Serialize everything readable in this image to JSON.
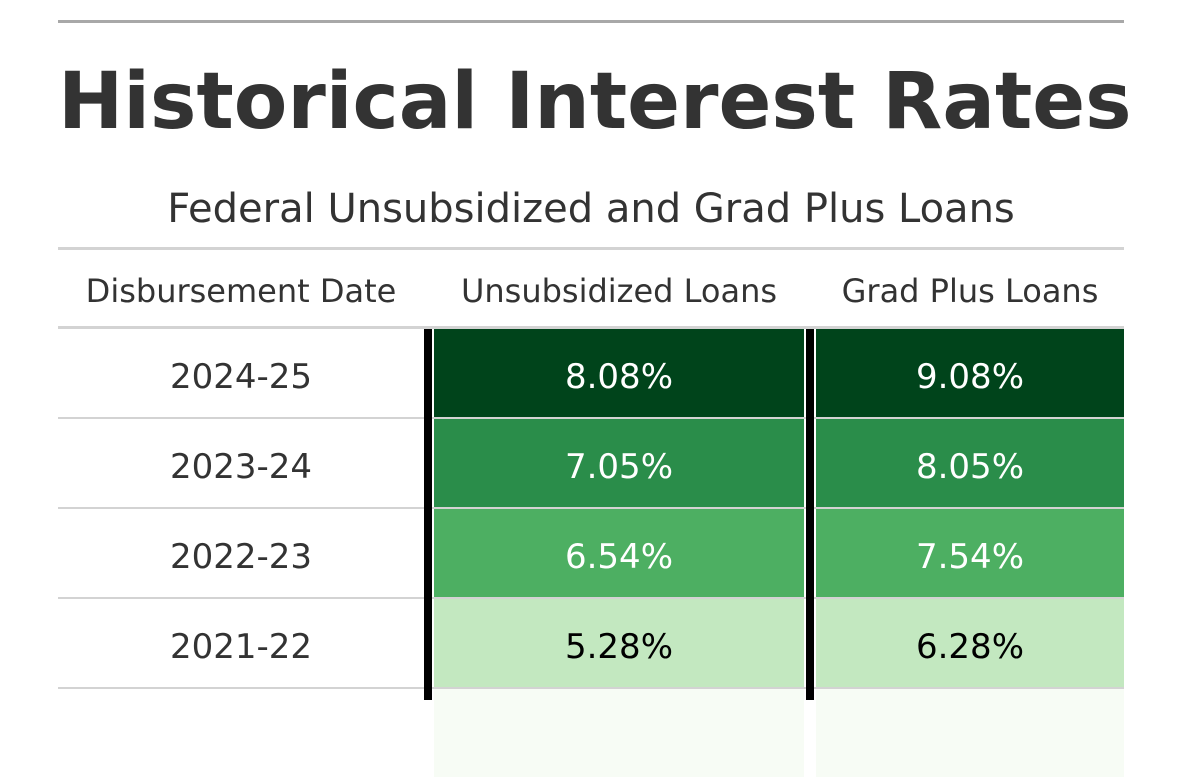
{
  "title": "Historical Interest Rates",
  "subtitle": "Federal Unsubsidized and Grad Plus Loans",
  "columns": [
    "Disbursement Date",
    "Unsubsidized Loans",
    "Grad Plus Loans"
  ],
  "rows": [
    {
      "date": "2024-25",
      "unsub": "8.08%",
      "grad": "9.08%"
    },
    {
      "date": "2023-24",
      "unsub": "7.05%",
      "grad": "8.05%"
    },
    {
      "date": "2022-23",
      "unsub": "6.54%",
      "grad": "7.54%"
    },
    {
      "date": "2021-22",
      "unsub": "5.28%",
      "grad": "6.28%"
    }
  ],
  "chart_data": {
    "type": "table",
    "title": "Historical Interest Rates",
    "subtitle": "Federal Unsubsidized and Grad Plus Loans",
    "columns": [
      "Disbursement Date",
      "Unsubsidized Loans",
      "Grad Plus Loans"
    ],
    "categories": [
      "2024-25",
      "2023-24",
      "2022-23",
      "2021-22"
    ],
    "series": [
      {
        "name": "Unsubsidized Loans",
        "values": [
          8.08,
          7.05,
          6.54,
          5.28
        ]
      },
      {
        "name": "Grad Plus Loans",
        "values": [
          9.08,
          8.05,
          7.54,
          6.28
        ]
      }
    ],
    "color_scale": {
      "name": "greens",
      "stops": [
        "#f7fcf5",
        "#c7e9c0",
        "#4daf62",
        "#2a8d4a",
        "#00441b"
      ]
    },
    "cell_colors": {
      "Unsubsidized Loans": [
        "#00441b",
        "#2a8d4a",
        "#4daf62",
        "#c3e8c0"
      ],
      "Grad Plus Loans": [
        "#00441b",
        "#2a8d4a",
        "#4daf62",
        "#c3e8c0"
      ]
    },
    "cell_text_colors": {
      "Unsubsidized Loans": [
        "#ffffff",
        "#ffffff",
        "#ffffff",
        "#000000"
      ],
      "Grad Plus Loans": [
        "#ffffff",
        "#ffffff",
        "#ffffff",
        "#000000"
      ]
    }
  }
}
